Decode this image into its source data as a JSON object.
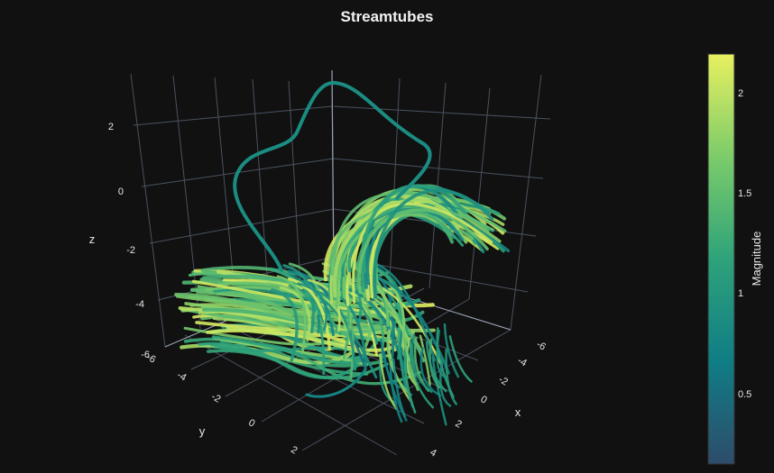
{
  "chart_data": {
    "type": "streamtube",
    "title": "Streamtubes",
    "x_axis": {
      "label": "x",
      "ticks": [
        "-6",
        "-4",
        "-2",
        "0",
        "2",
        "4"
      ]
    },
    "y_axis": {
      "label": "y",
      "ticks": [
        "-6",
        "-4",
        "-2",
        "0",
        "2"
      ]
    },
    "z_axis": {
      "label": "z",
      "ticks": [
        "2",
        "0",
        "-2",
        "-4",
        "-6"
      ]
    },
    "colorbar": {
      "title": "Magnitude",
      "ticks": [
        "2",
        "1.5",
        "1",
        "0.5"
      ],
      "range": [
        0.2,
        2.2
      ],
      "colorscale": [
        "#2e4c6b",
        "#0f7d85",
        "#2ea37a",
        "#7ccc6a",
        "#e8f060"
      ]
    },
    "background": "#111111",
    "gridlines": true
  }
}
